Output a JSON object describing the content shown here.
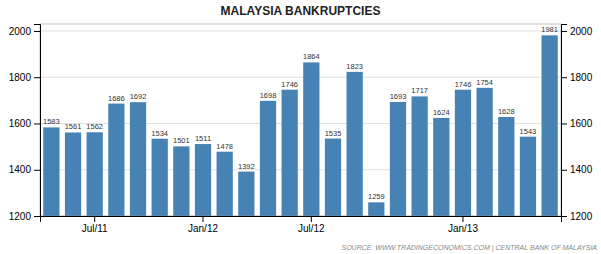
{
  "chart_data": {
    "type": "bar",
    "title": "MALAYSIA BANKRUPTCIES",
    "categories": [
      null,
      null,
      "Jul/11",
      null,
      null,
      null,
      null,
      "Jan/12",
      null,
      null,
      null,
      null,
      "Jul/12",
      null,
      null,
      null,
      null,
      null,
      null,
      "Jan/13",
      null,
      null,
      null,
      null
    ],
    "values": [
      1583,
      1561,
      1562,
      1686,
      1692,
      1534,
      1501,
      1511,
      1478,
      1392,
      1698,
      1746,
      1864,
      1535,
      1823,
      1259,
      1693,
      1717,
      1624,
      1746,
      1754,
      1628,
      1543,
      1981
    ],
    "color": "steelblue",
    "ylim": [
      1200,
      2030
    ],
    "yticks": [
      1200,
      1400,
      1600,
      1800,
      2000
    ],
    "y2lim": [
      1200,
      2030
    ],
    "y2ticks": [
      1200,
      1400,
      1600,
      1800,
      2000
    ],
    "grid": true,
    "data_labels": true,
    "annotations": [
      "SOURCE: WWW.TRADINGECONOMICS.COM | CENTRAL BANK OF MALAYSIA"
    ]
  }
}
